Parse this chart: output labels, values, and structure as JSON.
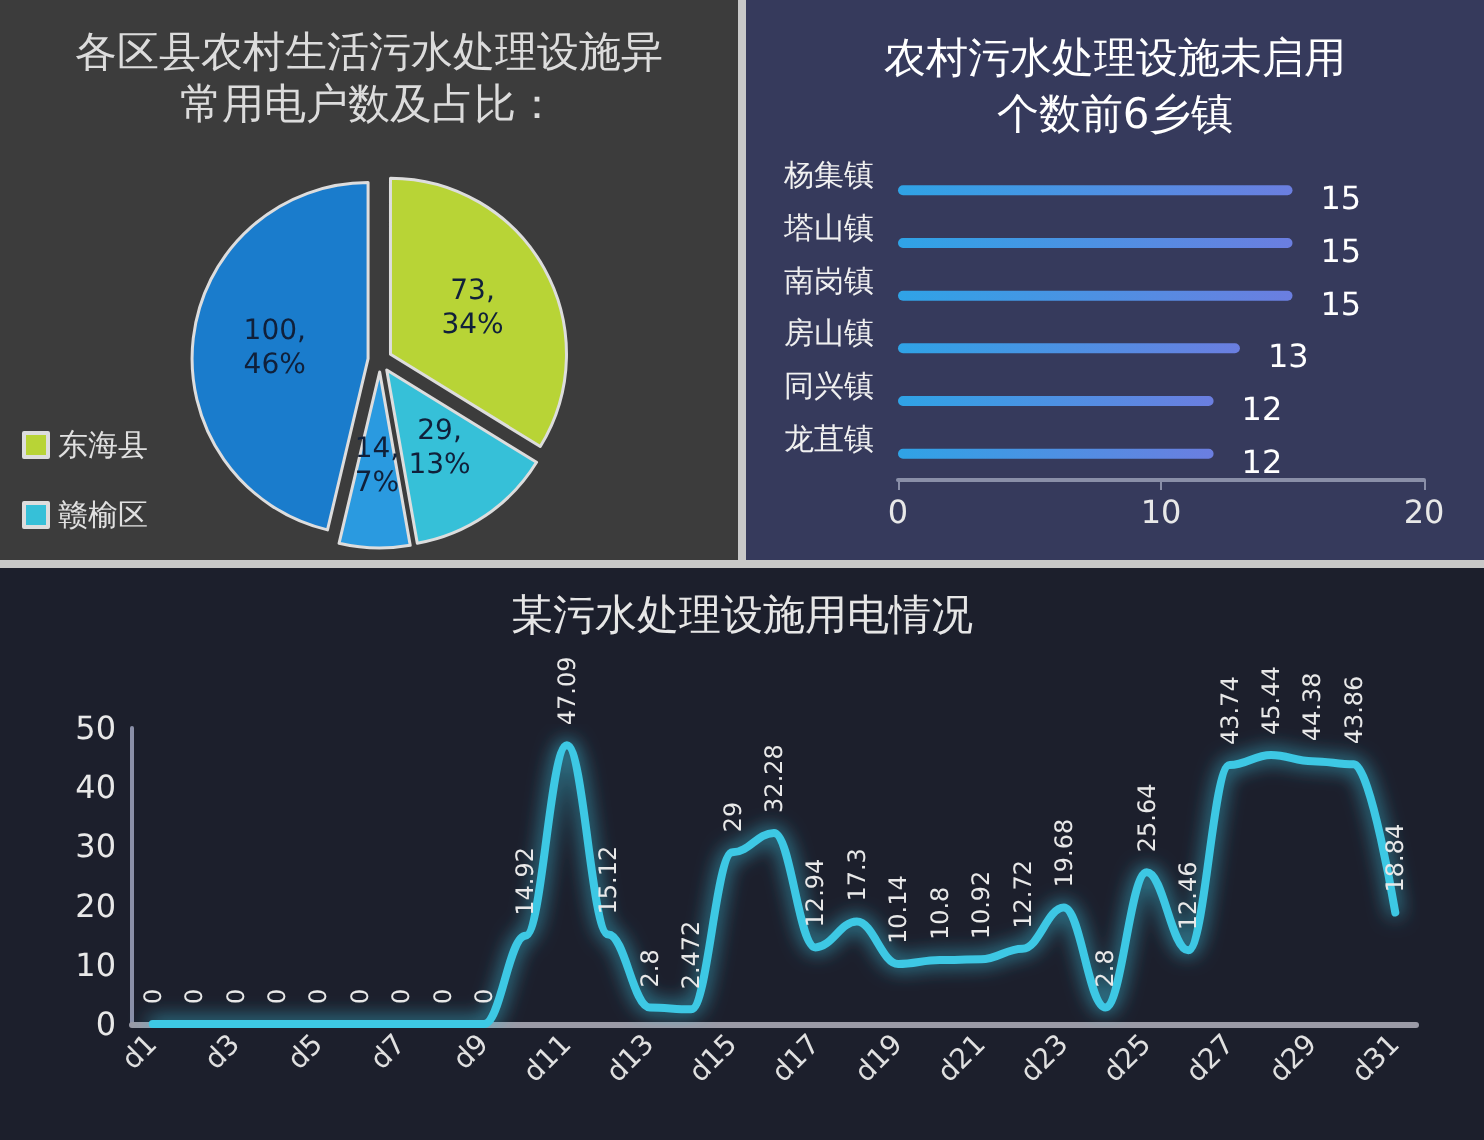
{
  "chart_data": [
    {
      "type": "pie",
      "title": "各区县农村生活污水处理设施异常用电户数及占比：",
      "categories": [
        "东海县",
        "赣榆区",
        null,
        null
      ],
      "values": [
        73,
        29,
        14,
        100
      ],
      "colors": [
        "#b8d436",
        "#36c0d8",
        "#2a9ae0",
        "#1a7ccc"
      ],
      "value_labels": [
        "73,\n34%",
        "29,\n13%",
        "14,\n7%",
        "100,\n46%"
      ],
      "legend": "bottom left"
    },
    {
      "type": "bar",
      "orientation": "horizontal",
      "title": "农村污水处理设施未启用个数前6乡镇",
      "categories": [
        "杨集镇",
        "塔山镇",
        "南岗镇",
        "房山镇",
        "同兴镇",
        "龙苴镇"
      ],
      "values": [
        15,
        15,
        15,
        13,
        12,
        12
      ],
      "color": "#6b7ee0",
      "xlim": [
        0,
        20
      ],
      "xticks": [
        0,
        10,
        20
      ],
      "data_labels": true,
      "grid": false
    },
    {
      "type": "line",
      "title": "某污水处理设施用电情况",
      "categories": [
        "d1",
        null,
        "d3",
        null,
        "d5",
        null,
        "d7",
        null,
        "d9",
        null,
        "d11",
        null,
        "d13",
        null,
        "d15",
        null,
        "d17",
        null,
        "d19",
        null,
        "d21",
        null,
        "d23",
        null,
        "d25",
        null,
        "d27",
        null,
        "d29",
        null,
        "d31"
      ],
      "values": [
        0,
        0,
        0,
        0,
        0,
        0,
        0,
        0,
        0,
        14.92,
        47.09,
        15.12,
        2.8,
        2.472,
        29,
        32.28,
        12.94,
        17.3,
        10.14,
        10.8,
        10.92,
        12.72,
        19.68,
        2.8,
        25.64,
        12.46,
        43.74,
        45.44,
        44.38,
        43.86,
        18.84
      ],
      "color": "#3cc8e4",
      "ylim": [
        0,
        50
      ],
      "yticks": [
        0,
        10,
        20,
        30,
        40,
        50
      ],
      "data_labels": true,
      "grid": false,
      "marker": "none",
      "line_style": "solid"
    }
  ]
}
